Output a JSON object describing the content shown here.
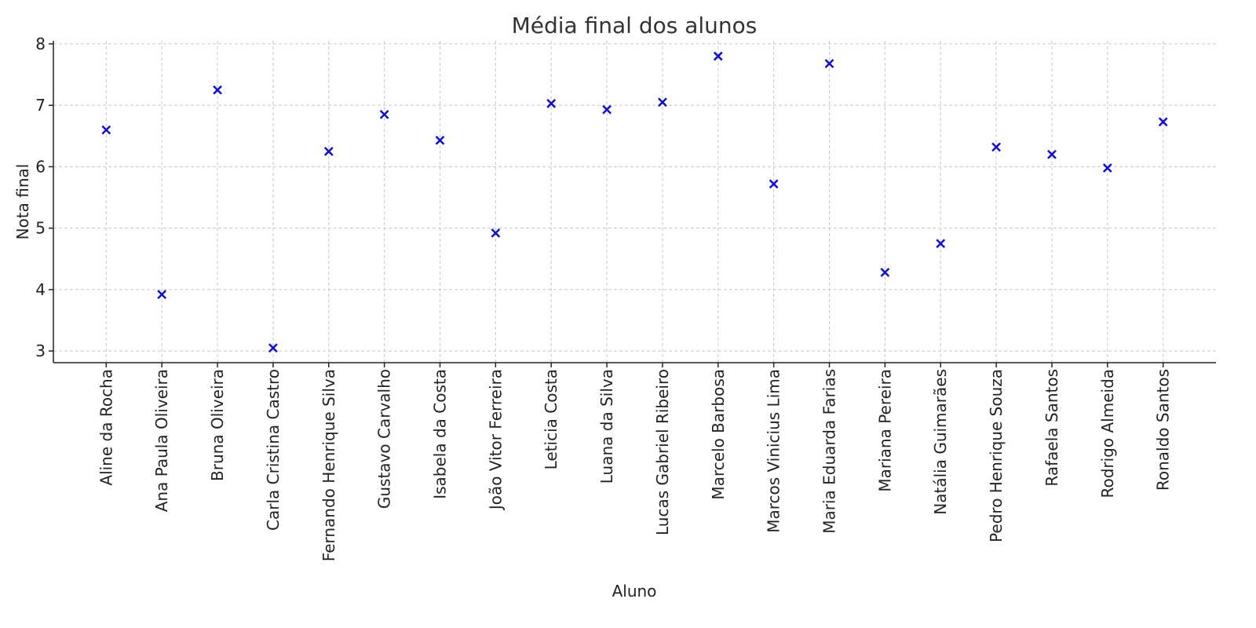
{
  "chart_data": {
    "type": "scatter",
    "title": "Média final dos alunos",
    "x_label": "Aluno",
    "y_label": "Nota final",
    "categories": [
      "Aline da Rocha",
      "Ana Paula Oliveira",
      "Bruna Oliveira",
      "Carla Cristina Castro",
      "Fernando Henrique Silva",
      "Gustavo Carvalho",
      "Isabela da Costa",
      "João Vitor Ferreira",
      "Leticia Costa",
      "Luana da Silva",
      "Lucas Gabriel Ribeiro",
      "Marcelo Barbosa",
      "Marcos Vinicius Lima",
      "Maria Eduarda Farias",
      "Mariana Pereira",
      "Natália Guimarães",
      "Pedro Henrique Souza",
      "Rafaela Santos",
      "Rodrigo Almeida",
      "Ronaldo Santos"
    ],
    "values": [
      6.6,
      3.92,
      7.25,
      3.05,
      6.25,
      6.85,
      6.43,
      4.92,
      7.03,
      6.93,
      7.05,
      7.8,
      5.72,
      7.68,
      4.28,
      4.75,
      6.32,
      6.2,
      5.98,
      6.73
    ],
    "color": "#1010cc",
    "marker": "x",
    "ylim": [
      2.81,
      8.05
    ],
    "yticks": [
      3,
      4,
      5,
      6,
      7,
      8
    ],
    "grid": true
  }
}
